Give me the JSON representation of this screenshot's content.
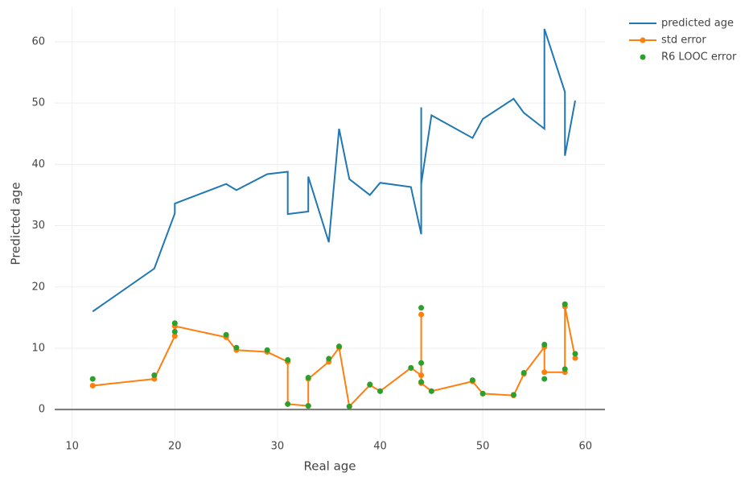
{
  "chart_data": {
    "type": "line",
    "x_label": "Real age",
    "y_label": "Predicted age",
    "x": [
      12,
      18,
      20,
      20,
      25,
      26,
      29,
      31,
      31,
      33,
      33,
      35,
      36,
      37,
      39,
      40,
      43,
      44,
      44,
      44,
      45,
      49,
      50,
      53,
      54,
      56,
      56,
      58,
      58,
      59
    ],
    "series": [
      {
        "name": "predicted age",
        "color": "#1f77b4",
        "mode": "lines",
        "values": [
          16,
          23,
          32,
          33.6,
          36.8,
          35.8,
          38.4,
          38.8,
          31.9,
          32.3,
          38,
          27.3,
          45.8,
          37.6,
          35,
          37,
          36.3,
          28.6,
          49.3,
          36.8,
          48,
          44.3,
          47.4,
          50.7,
          48.4,
          45.8,
          62.1,
          51.8,
          41.4,
          50.4
        ]
      },
      {
        "name": "std error",
        "color": "#ff7f0e",
        "mode": "lines+markers",
        "values": [
          3.9,
          5,
          12,
          13.6,
          11.8,
          9.7,
          9.4,
          7.8,
          0.9,
          0.6,
          5,
          7.8,
          10.1,
          0.5,
          4,
          3,
          6.8,
          5.6,
          15.5,
          4.3,
          3,
          4.6,
          2.6,
          2.3,
          5.8,
          10.2,
          6.1,
          6.1,
          16.8,
          8.4
        ]
      },
      {
        "name": "R6 LOOC error",
        "color": "#2ca02c",
        "mode": "markers",
        "values": [
          5,
          5.6,
          12.7,
          14.1,
          12.2,
          10.1,
          9.7,
          8.1,
          0.9,
          0.6,
          5.2,
          8.3,
          10.3,
          0.5,
          4.1,
          3,
          6.8,
          7.6,
          16.6,
          4.5,
          3,
          4.8,
          2.6,
          2.4,
          6,
          10.6,
          5,
          6.6,
          17.2,
          9.1
        ]
      }
    ],
    "xlim": [
      8.3,
      61.9
    ],
    "xticks": [
      10,
      20,
      30,
      40,
      50,
      60
    ],
    "ylim": [
      -4.7,
      65.5
    ],
    "yticks": [
      0,
      10,
      20,
      30,
      40,
      50,
      60
    ],
    "grid": true,
    "legend": "right"
  }
}
